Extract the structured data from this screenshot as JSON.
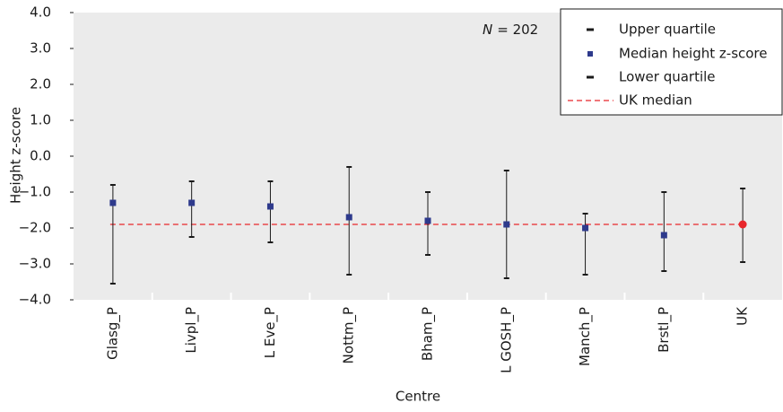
{
  "chart_data": {
    "type": "quartile",
    "y_label": "Height z-score",
    "x_label": "Centre",
    "annotation": {
      "variable": "N",
      "text": "= 202"
    },
    "categories": [
      "Glasg_P",
      "Livpl_P",
      "L Eve_P",
      "Nottm_P",
      "Bham_P",
      "L GOSH_P",
      "Manch_P",
      "Brstl_P",
      "UK"
    ],
    "series": [
      {
        "name": "Upper quartile",
        "color": "#1a1a1a",
        "values": [
          -0.8,
          -0.7,
          -0.7,
          -0.3,
          -1.0,
          -0.4,
          -1.6,
          -1.0,
          -0.9
        ]
      },
      {
        "name": "Median height z-score",
        "color": "#2e3a8c",
        "colors": [
          "#2e3a8c",
          "#2e3a8c",
          "#2e3a8c",
          "#2e3a8c",
          "#2e3a8c",
          "#2e3a8c",
          "#2e3a8c",
          "#2e3a8c",
          "#e8262b"
        ],
        "values": [
          -1.3,
          -1.3,
          -1.4,
          -1.7,
          -1.8,
          -1.9,
          -2.0,
          -2.2,
          -1.9
        ]
      },
      {
        "name": "Lower quartile",
        "color": "#1a1a1a",
        "values": [
          -3.55,
          -2.25,
          -2.4,
          -3.3,
          -2.75,
          -3.4,
          -3.3,
          -3.2,
          -2.95
        ]
      }
    ],
    "reference": {
      "name": "UK median",
      "color": "#e8262b",
      "value": -1.9
    },
    "ylim": [
      -4,
      4
    ],
    "yticks": [
      {
        "value": -4,
        "label": "−4.0"
      },
      {
        "value": -3,
        "label": "−3.0"
      },
      {
        "value": -2,
        "label": "−2.0"
      },
      {
        "value": -1,
        "label": "−1.0"
      },
      {
        "value": 0,
        "label": "0.0"
      },
      {
        "value": 1,
        "label": "1.0"
      },
      {
        "value": 2,
        "label": "2.0"
      },
      {
        "value": 3,
        "label": "3.0"
      },
      {
        "value": 4,
        "label": "4.0"
      }
    ],
    "legend": "top-right"
  }
}
